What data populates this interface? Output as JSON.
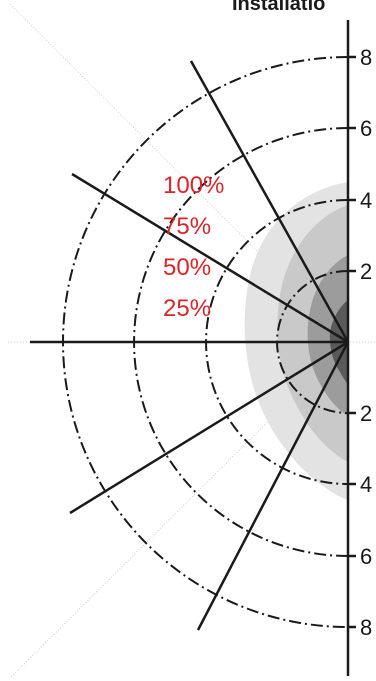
{
  "title": "Installatio",
  "scale": {
    "labels": [
      "8",
      "6",
      "4",
      "2",
      "2",
      "4",
      "6",
      "8"
    ]
  },
  "intensity_labels": [
    "100%",
    "75%",
    "50%",
    "25%"
  ],
  "colors": {
    "line": "#1a1a1a",
    "pct_text": "#d9262d",
    "guide": "#bdbdbd",
    "shade_1": "#e3e3e3",
    "shade_2": "#c9c9c9",
    "shade_3": "#9c9c9c",
    "shade_4": "#5a5a5a"
  }
}
